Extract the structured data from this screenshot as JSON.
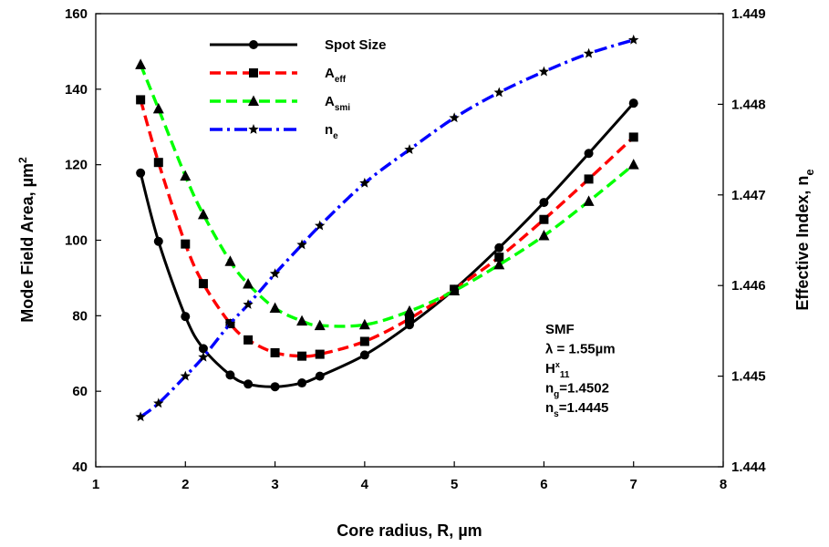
{
  "chart_data": {
    "type": "line",
    "title": "",
    "xlabel": "Core radius, R, µm",
    "ylabel_left": "Mode Field Area, µm²",
    "ylabel_right": "Effective Index, n_e",
    "xlim": [
      1,
      8
    ],
    "xticks": [
      "1",
      "2",
      "3",
      "4",
      "5",
      "6",
      "7",
      "8"
    ],
    "ylim_left": [
      40,
      160
    ],
    "yticks_left": [
      "40",
      "60",
      "80",
      "100",
      "120",
      "140",
      "160"
    ],
    "ylim_right": [
      1.444,
      1.449
    ],
    "yticks_right": [
      "1.444",
      "1.445",
      "1.446",
      "1.447",
      "1.448",
      "1.449"
    ],
    "grid": false,
    "legend_position": "top-left",
    "series": [
      {
        "name": "Spot Size",
        "axis": "left",
        "marker": "circle",
        "line_style": "solid",
        "color": "#000000",
        "x": [
          1.5,
          1.7,
          2.0,
          2.2,
          2.5,
          2.7,
          3.0,
          3.3,
          3.5,
          4.0,
          4.5,
          5.0,
          5.5,
          6.0,
          6.5,
          7.0
        ],
        "values": [
          117.8,
          99.7,
          79.8,
          71.3,
          64.3,
          61.9,
          61.2,
          62.2,
          64.0,
          69.6,
          77.6,
          87.0,
          98.0,
          110.0,
          123.0,
          136.3
        ]
      },
      {
        "name": "A_eff",
        "axis": "left",
        "marker": "square",
        "line_style": "dashed",
        "color": "#ff0000",
        "x": [
          1.5,
          1.7,
          2.0,
          2.2,
          2.5,
          2.7,
          3.0,
          3.3,
          3.5,
          4.0,
          4.5,
          5.0,
          5.5,
          6.0,
          6.5,
          7.0
        ],
        "values": [
          137.2,
          120.6,
          99.0,
          88.5,
          77.9,
          73.6,
          70.2,
          69.3,
          69.8,
          73.2,
          79.2,
          87.0,
          95.5,
          105.5,
          116.2,
          127.3
        ]
      },
      {
        "name": "A_smi",
        "axis": "left",
        "marker": "triangle",
        "line_style": "dashed",
        "color": "#00ff00",
        "x": [
          1.5,
          1.7,
          2.0,
          2.2,
          2.5,
          2.7,
          3.0,
          3.3,
          3.5,
          4.0,
          4.5,
          5.0,
          5.5,
          6.0,
          6.5,
          7.0
        ],
        "values": [
          146.5,
          134.8,
          117.0,
          106.8,
          94.4,
          88.4,
          82.0,
          78.6,
          77.4,
          77.6,
          81.2,
          86.6,
          93.5,
          101.2,
          110.3,
          120.0
        ]
      },
      {
        "name": "n_e",
        "axis": "right",
        "marker": "star",
        "line_style": "dashdot",
        "color": "#0000ff",
        "x": [
          1.5,
          1.7,
          2.0,
          2.2,
          2.5,
          2.7,
          3.0,
          3.3,
          3.5,
          4.0,
          4.5,
          5.0,
          5.5,
          6.0,
          6.5,
          7.0
        ],
        "values": [
          1.44455,
          1.4447,
          1.445,
          1.44521,
          1.44558,
          1.44579,
          1.44613,
          1.44645,
          1.44666,
          1.44713,
          1.4475,
          1.44785,
          1.44813,
          1.44836,
          1.44856,
          1.44871
        ]
      }
    ],
    "annotation": {
      "lines": [
        {
          "text": "SMF"
        },
        {
          "text": "λ = 1.55µm"
        },
        {
          "text": "H",
          "sup": "x",
          "sub": "11"
        },
        {
          "text": "n",
          "sub": "g",
          "tail": "=1.4502"
        },
        {
          "text": "n",
          "sub": "s",
          "tail": "=1.4445"
        }
      ]
    }
  }
}
